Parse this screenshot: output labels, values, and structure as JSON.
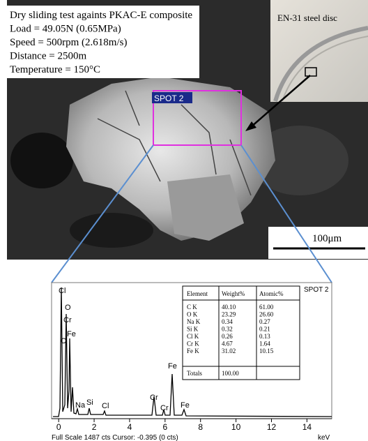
{
  "sem_image": {
    "info_lines": [
      "Dry sliding test againts PKAC-E composite",
      "Load = 49.05N (0.65MPa)",
      "Speed = 500rpm (2.618m/s)",
      "Distance = 2500m",
      "Temperature = 150°C"
    ],
    "inset_label": "EN-31 steel disc",
    "spot_label": "SPOT 2",
    "scale_bar": "100μm"
  },
  "spectrum": {
    "xlim": [
      -0.4,
      15.4
    ],
    "xticks": [
      0,
      2,
      4,
      6,
      8,
      10,
      12,
      14
    ],
    "x_unit": "keV",
    "footer": "Full Scale 1487 cts Cursor: -0.395 (0 cts)",
    "spot_label": "SPOT 2",
    "peak_labels": [
      "Cl",
      "O",
      "Cr",
      "C",
      "Fe",
      "Na",
      "Si",
      "Cl",
      "Cr",
      "Cr",
      "Fe",
      "Fe"
    ],
    "table": {
      "header": [
        "Element",
        "Weight%",
        "Atomic%"
      ],
      "rows": [
        [
          "C K",
          "40.10",
          "61.00"
        ],
        [
          "O K",
          "23.29",
          "26.60"
        ],
        [
          "Na K",
          "0.34",
          "0.27"
        ],
        [
          "Si K",
          "0.32",
          "0.21"
        ],
        [
          "Cl K",
          "0.26",
          "0.13"
        ],
        [
          "Cr K",
          "4.67",
          "1.64"
        ],
        [
          "Fe K",
          "31.02",
          "10.15"
        ]
      ],
      "totals": [
        "Totals",
        "100.00"
      ]
    }
  }
}
